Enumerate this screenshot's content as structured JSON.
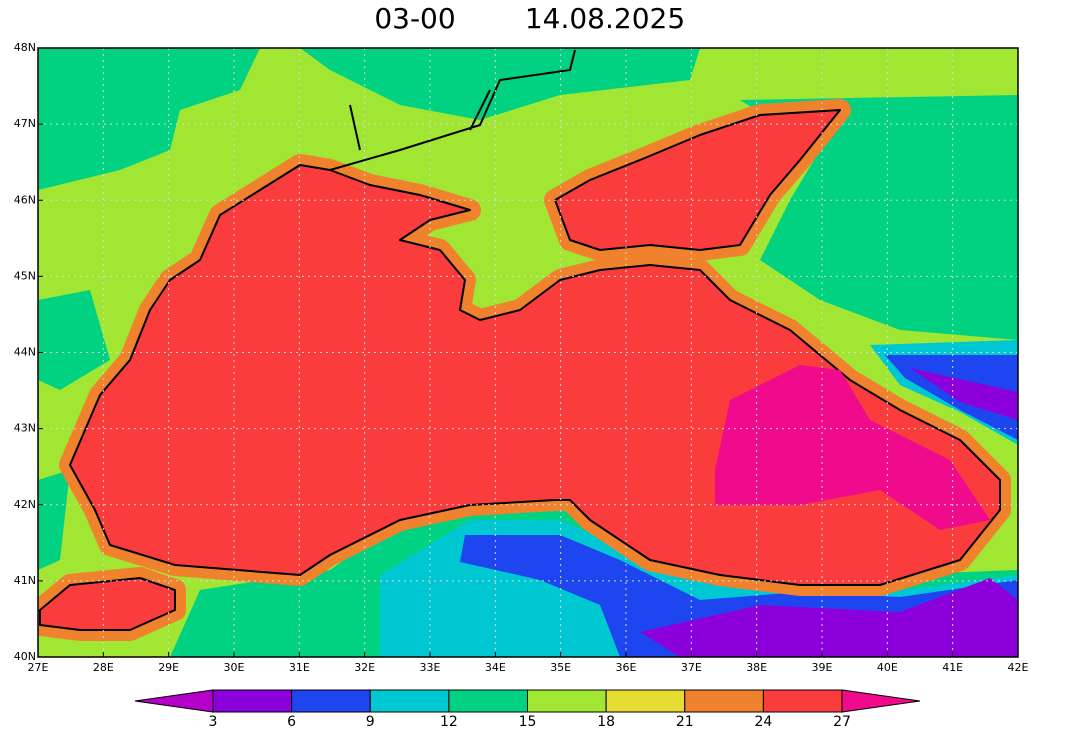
{
  "title": {
    "time": "03-00",
    "date": "14.08.2025"
  },
  "map": {
    "lat_labels": [
      "40N",
      "41N",
      "42N",
      "43N",
      "44N",
      "45N",
      "46N",
      "47N",
      "48N"
    ],
    "lon_labels": [
      "27E",
      "28E",
      "29E",
      "30E",
      "31E",
      "32E",
      "33E",
      "34E",
      "35E",
      "36E",
      "37E",
      "38E",
      "39E",
      "40E",
      "41E",
      "42E"
    ]
  },
  "colorbar": {
    "ticks": [
      3,
      6,
      9,
      12,
      15,
      18,
      21,
      24,
      27
    ],
    "colors": [
      "#b400c8",
      "#8c00dc",
      "#1e46f0",
      "#00c8d2",
      "#00d282",
      "#a0e632",
      "#e6dc32",
      "#f0822d",
      "#fa3c3c",
      "#f00a8c"
    ]
  }
}
